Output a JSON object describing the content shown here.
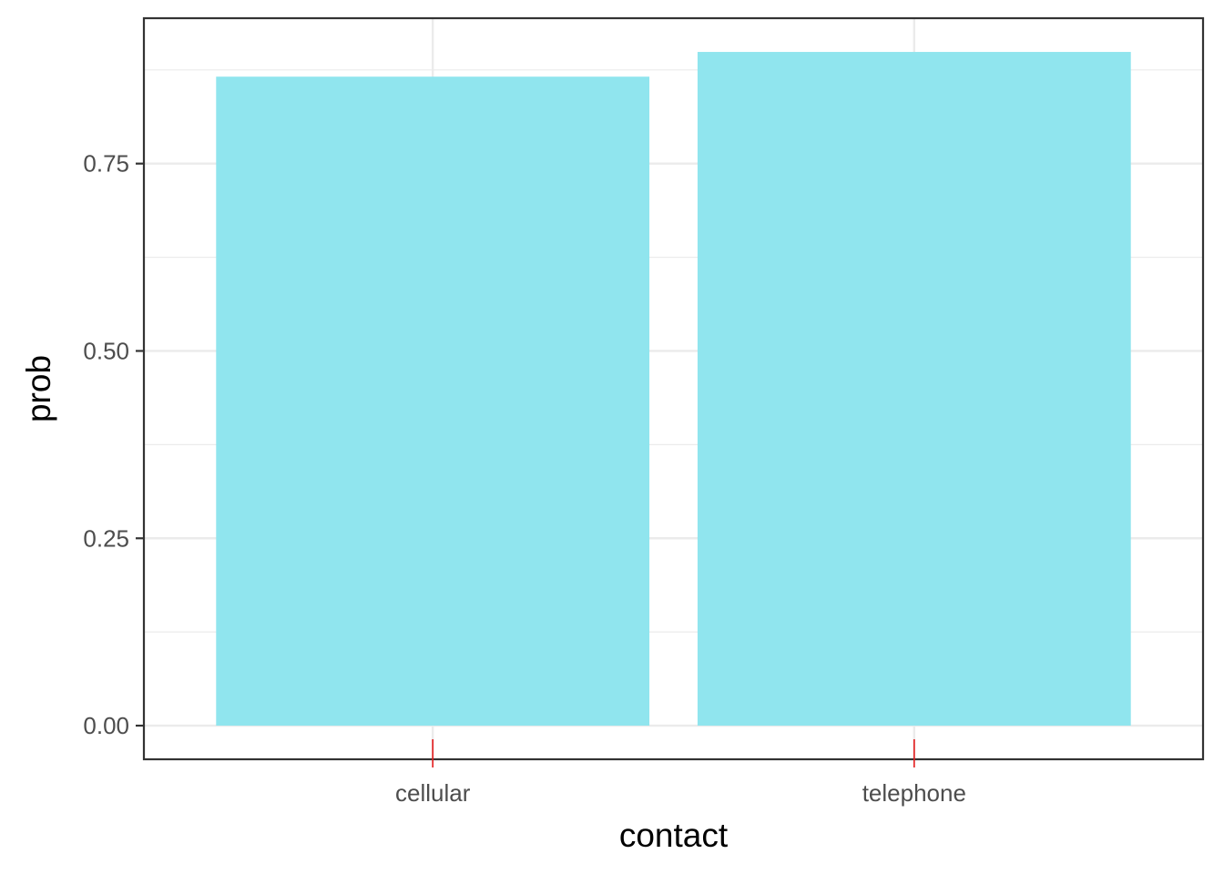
{
  "chart_data": {
    "type": "bar",
    "categories": [
      "cellular",
      "telephone"
    ],
    "values": [
      0.866,
      0.899
    ],
    "xlabel": "contact",
    "ylabel": "prob",
    "ylim": [
      -0.0449,
      0.944
    ],
    "yticks": [
      0,
      0.25,
      0.5,
      0.75
    ],
    "ytick_labels": [
      "0.00",
      "0.25",
      "0.50",
      "0.75"
    ],
    "grid": true,
    "legend": "none",
    "colors": {
      "bar": "#90e5ee",
      "panel_border": "#333333",
      "grid": "#ebebeb",
      "x_tick_mark": "#e31a1c",
      "y_tick_mark": "#333333"
    }
  }
}
